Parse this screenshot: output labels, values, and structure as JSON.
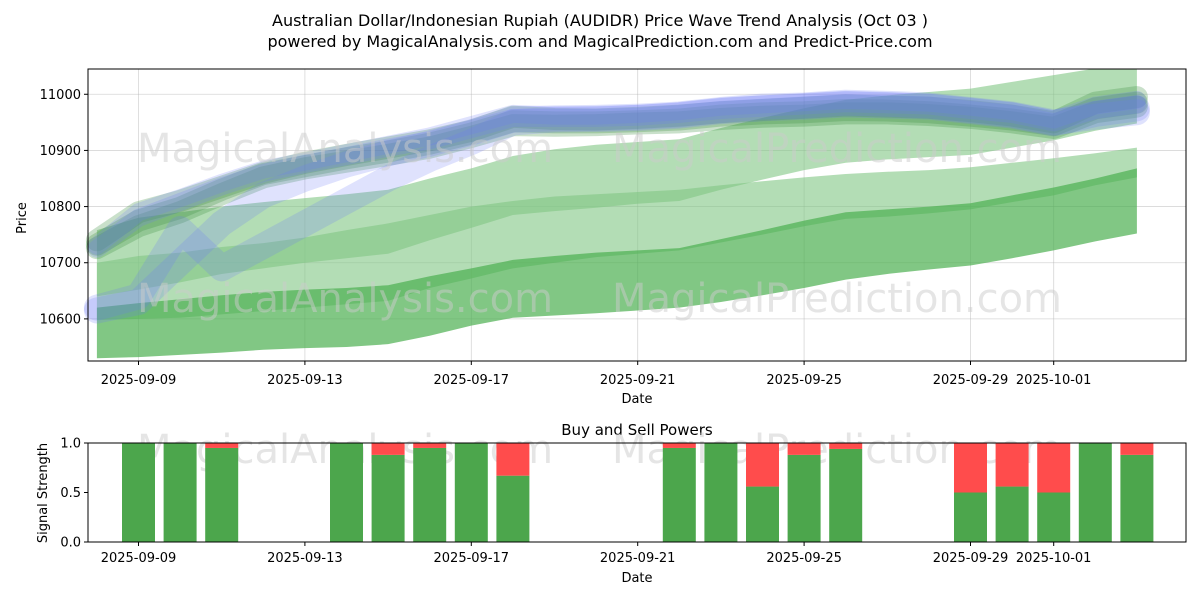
{
  "title_line1": "Australian Dollar/Indonesian Rupiah (AUDIDR) Price Wave Trend Analysis (Oct 03 )",
  "title_line2": "powered by MagicalAnalysis.com and MagicalPrediction.com and Predict-Price.com",
  "watermarks": [
    "MagicalAnalysis.com",
    "MagicalPrediction.com"
  ],
  "colors": {
    "green_band": "#4CAF50",
    "green_band_light": "#81C784",
    "blue_band": "#6F7BF7",
    "buy": "#4CA64C",
    "sell": "#FF4C4C",
    "watermark": "#cccccc"
  },
  "chart_data": [
    {
      "type": "area",
      "title": "",
      "xlabel": "Date",
      "ylabel": "Price",
      "x_dates": [
        "2025-09-08",
        "2025-09-09",
        "2025-09-10",
        "2025-09-11",
        "2025-09-12",
        "2025-09-13",
        "2025-09-14",
        "2025-09-15",
        "2025-09-16",
        "2025-09-17",
        "2025-09-18",
        "2025-09-19",
        "2025-09-20",
        "2025-09-21",
        "2025-09-22",
        "2025-09-23",
        "2025-09-24",
        "2025-09-25",
        "2025-09-26",
        "2025-09-27",
        "2025-09-28",
        "2025-09-29",
        "2025-09-30",
        "2025-10-01",
        "2025-10-02",
        "2025-10-03"
      ],
      "xticks": [
        "2025-09-09",
        "2025-09-13",
        "2025-09-17",
        "2025-09-21",
        "2025-09-25",
        "2025-09-29",
        "2025-10-01"
      ],
      "yticks": [
        10600,
        10700,
        10800,
        10900,
        11000
      ],
      "ylim": [
        10525,
        11045
      ],
      "grid": true,
      "green_bands": [
        {
          "name": "wide upper band",
          "upper": [
            10758,
            10780,
            10790,
            10800,
            10808,
            10815,
            10822,
            10830,
            10850,
            10868,
            10890,
            10902,
            10910,
            10915,
            10920,
            10940,
            10958,
            10975,
            10990,
            10998,
            11004,
            11010,
            11022,
            11034,
            11046,
            11046
          ],
          "lower": [
            10640,
            10652,
            10665,
            10680,
            10690,
            10700,
            10708,
            10716,
            10740,
            10762,
            10785,
            10792,
            10798,
            10805,
            10810,
            10830,
            10848,
            10865,
            10878,
            10884,
            10888,
            10892,
            10905,
            10918,
            10935,
            10948
          ]
        },
        {
          "name": "wide lower band",
          "upper": [
            10700,
            10712,
            10718,
            10728,
            10735,
            10745,
            10758,
            10770,
            10785,
            10800,
            10810,
            10818,
            10822,
            10826,
            10830,
            10838,
            10845,
            10852,
            10858,
            10862,
            10865,
            10870,
            10878,
            10886,
            10895,
            10905
          ],
          "lower": [
            10598,
            10600,
            10602,
            10608,
            10614,
            10620,
            10626,
            10632,
            10655,
            10672,
            10690,
            10700,
            10710,
            10716,
            10722,
            10736,
            10750,
            10765,
            10778,
            10782,
            10788,
            10795,
            10808,
            10820,
            10838,
            10852
          ]
        },
        {
          "name": "deep band",
          "upper": [
            10620,
            10628,
            10635,
            10642,
            10648,
            10652,
            10655,
            10660,
            10676,
            10690,
            10705,
            10712,
            10718,
            10722,
            10726,
            10742,
            10758,
            10775,
            10790,
            10795,
            10800,
            10806,
            10820,
            10834,
            10850,
            10868
          ],
          "lower": [
            10530,
            10532,
            10536,
            10540,
            10545,
            10548,
            10550,
            10555,
            10570,
            10588,
            10602,
            10606,
            10610,
            10615,
            10620,
            10630,
            10642,
            10655,
            10670,
            10680,
            10688,
            10695,
            10708,
            10722,
            10738,
            10752
          ]
        }
      ],
      "green_paths_close": [
        {
          "name": "green path 1",
          "values": [
            10732,
            10775,
            10798,
            10830,
            10858,
            10872,
            10886,
            10898,
            10912,
            10930,
            10952,
            10950,
            10950,
            10952,
            10955,
            10962,
            10966,
            10968,
            10972,
            10971,
            10968,
            10962,
            10955,
            10945,
            10975,
            10985
          ]
        },
        {
          "name": "green path 2",
          "values": [
            10740,
            10790,
            10810,
            10835,
            10860,
            10878,
            10892,
            10905,
            10918,
            10935,
            10960,
            10956,
            10955,
            10958,
            10962,
            10968,
            10972,
            10976,
            10980,
            10978,
            10976,
            10970,
            10962,
            10950,
            10985,
            10995
          ]
        },
        {
          "name": "green path 3",
          "values": [
            10726,
            10765,
            10790,
            10822,
            10852,
            10868,
            10880,
            10892,
            10905,
            10924,
            10945,
            10944,
            10945,
            10948,
            10950,
            10956,
            10960,
            10962,
            10966,
            10966,
            10963,
            10958,
            10950,
            10940,
            10968,
            10978
          ]
        }
      ],
      "blue_paths": [
        {
          "name": "blue path 1",
          "values": [
            10730,
            10790,
            10815,
            10842,
            10866,
            10880,
            10895,
            10910,
            10925,
            10945,
            10965,
            10962,
            10962,
            10965,
            10970,
            10978,
            10982,
            10986,
            10990,
            10988,
            10985,
            10978,
            10970,
            10955,
            10980,
            10990
          ]
        },
        {
          "name": "blue path 2",
          "values": [
            10725,
            10780,
            10808,
            10836,
            10860,
            10876,
            10890,
            10905,
            10918,
            10938,
            10958,
            10958,
            10958,
            10960,
            10965,
            10972,
            10976,
            10980,
            10984,
            10982,
            10980,
            10972,
            10965,
            10950,
            10972,
            10982
          ]
        },
        {
          "name": "blue path 3",
          "values": [
            10620,
            10640,
            10760,
            10690,
            10730,
            10770,
            10810,
            10850,
            10885,
            10915,
            10950,
            10955,
            10956,
            10958,
            10962,
            10970,
            10975,
            10978,
            10982,
            10980,
            10978,
            10970,
            10962,
            10948,
            10965,
            10975
          ]
        },
        {
          "name": "blue path 4",
          "values": [
            10615,
            10630,
            10700,
            10770,
            10820,
            10850,
            10875,
            10895,
            10912,
            10932,
            10955,
            10957,
            10958,
            10960,
            10964,
            10972,
            10978,
            10980,
            10985,
            10983,
            10980,
            10972,
            10964,
            10950,
            10960,
            10968
          ]
        }
      ]
    },
    {
      "type": "bar",
      "title": "Buy and Sell Powers",
      "xlabel": "Date",
      "ylabel": "Signal Strength",
      "yticks": [
        0.0,
        0.5,
        1.0
      ],
      "ytick_labels": [
        "0.0",
        "0.5",
        "1.0"
      ],
      "ylim": [
        0,
        1
      ],
      "xticks": [
        "2025-09-09",
        "2025-09-13",
        "2025-09-17",
        "2025-09-21",
        "2025-09-25",
        "2025-09-29",
        "2025-10-01"
      ],
      "series": [
        {
          "name": "Buy",
          "color": "#4CA64C",
          "dates": [
            "2025-09-09",
            "2025-09-10",
            "2025-09-11",
            "2025-09-14",
            "2025-09-15",
            "2025-09-16",
            "2025-09-17",
            "2025-09-18",
            "2025-09-22",
            "2025-09-23",
            "2025-09-24",
            "2025-09-25",
            "2025-09-26",
            "2025-09-29",
            "2025-09-30",
            "2025-10-01",
            "2025-10-02",
            "2025-10-03"
          ],
          "values": [
            1.0,
            1.0,
            0.95,
            1.0,
            0.88,
            0.95,
            1.0,
            0.67,
            0.95,
            1.0,
            0.56,
            0.88,
            0.94,
            0.5,
            0.56,
            0.5,
            1.0,
            0.88
          ]
        },
        {
          "name": "Sell",
          "color": "#FF4C4C",
          "dates": [
            "2025-09-09",
            "2025-09-10",
            "2025-09-11",
            "2025-09-14",
            "2025-09-15",
            "2025-09-16",
            "2025-09-17",
            "2025-09-18",
            "2025-09-22",
            "2025-09-23",
            "2025-09-24",
            "2025-09-25",
            "2025-09-26",
            "2025-09-29",
            "2025-09-30",
            "2025-10-01",
            "2025-10-02",
            "2025-10-03"
          ],
          "values": [
            0.0,
            0.0,
            0.05,
            0.0,
            0.12,
            0.05,
            0.0,
            0.33,
            0.05,
            0.0,
            0.44,
            0.12,
            0.06,
            0.5,
            0.44,
            0.5,
            0.0,
            0.12
          ]
        }
      ]
    }
  ]
}
